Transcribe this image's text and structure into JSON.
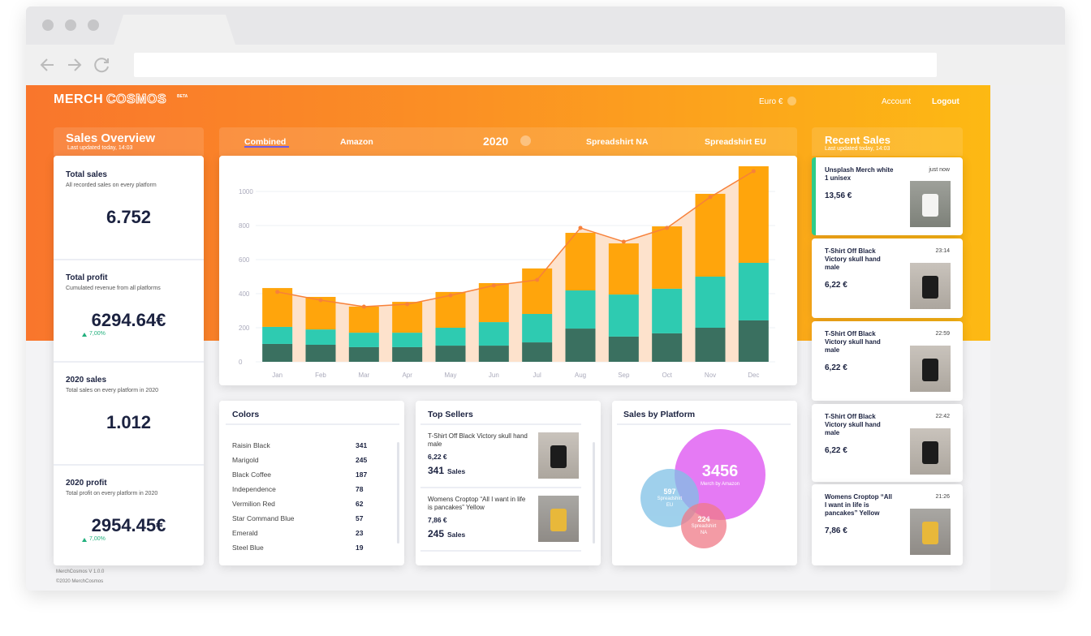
{
  "header": {
    "logo_left": "MERCH",
    "logo_right": "COSMOS",
    "badge": "BETA",
    "currency": "Euro €",
    "account": "Account",
    "logout": "Logout"
  },
  "overview": {
    "title": "Sales Overview",
    "updated": "Last updated today, 14:03",
    "cards": [
      {
        "title": "Total sales",
        "subtitle": "All recorded sales on every platform",
        "value": "6.752"
      },
      {
        "title": "Total profit",
        "subtitle": "Cumulated revenue from all platforms",
        "value": "6294.64€",
        "change": "7,00%"
      },
      {
        "title": "2020 sales",
        "subtitle": "Total sales on every platform in 2020",
        "value": "1.012"
      },
      {
        "title": "2020 profit",
        "subtitle": "Total profit on every platform in 2020",
        "value": "2954.45€",
        "change": "7,00%"
      }
    ]
  },
  "footer": {
    "version": "MerchCosmos V 1.0.0",
    "copyright": "©2020 MerchCosmos"
  },
  "tabs": [
    "Combined",
    "Amazon",
    "2020",
    "Spreadshirt NA",
    "Spreadshirt EU"
  ],
  "chart_data": {
    "type": "bar",
    "stacked": true,
    "categories": [
      "Jan",
      "Feb",
      "Mar",
      "Apr",
      "May",
      "Jun",
      "Jul",
      "Aug",
      "Sep",
      "Oct",
      "Nov",
      "Dec"
    ],
    "series": [
      {
        "type": "bar",
        "color": "#3a7060",
        "values": [
          105,
          100,
          86,
          86,
          95,
          95,
          114,
          195,
          148,
          167,
          200,
          243
        ]
      },
      {
        "type": "bar",
        "color": "#2ecbb1",
        "values": [
          100,
          90,
          85,
          85,
          105,
          138,
          167,
          224,
          247,
          262,
          300,
          338
        ]
      },
      {
        "type": "bar",
        "color": "#ffa50c",
        "values": [
          228,
          191,
          153,
          181,
          210,
          229,
          267,
          338,
          300,
          366,
          486,
          567
        ]
      },
      {
        "type": "line",
        "color": "#f7813a",
        "area_color": "#fde2cc",
        "values": [
          410,
          362,
          324,
          338,
          390,
          448,
          481,
          786,
          705,
          786,
          967,
          1119
        ]
      }
    ],
    "ylim": [
      0,
      1200
    ],
    "yticks": [
      0,
      200,
      400,
      600,
      800,
      1000
    ],
    "grid": true
  },
  "colors": {
    "title": "Colors",
    "rows": [
      [
        "Raisin Black",
        341
      ],
      [
        "Marigold",
        245
      ],
      [
        "Black Coffee",
        187
      ],
      [
        "Independence",
        78
      ],
      [
        "Vermilion Red",
        62
      ],
      [
        "Star Command Blue",
        57
      ],
      [
        "Emerald",
        23
      ],
      [
        "Steel Blue",
        19
      ]
    ]
  },
  "top_sellers": {
    "title": "Top Sellers",
    "items": [
      {
        "name": "T-Shirt Off Black Victory skull hand male",
        "price": "6,22 €",
        "count": "341",
        "unit": "Sales"
      },
      {
        "name": "Womens Croptop “All I want in life is pancakes” Yellow",
        "price": "7,86 €",
        "count": "245",
        "unit": "Sales"
      }
    ]
  },
  "platforms": {
    "title": "Sales by Platform",
    "items": [
      {
        "value": 3456,
        "label": "Merch by Amazon",
        "color": "#e36cf3"
      },
      {
        "value": 597,
        "label": "Spreadshirt EU",
        "color": "#7fc1e6"
      },
      {
        "value": 224,
        "label": "Spreadshirt NA",
        "color": "#f07a88"
      }
    ]
  },
  "recent": {
    "title": "Recent Sales",
    "updated": "Last updated today, 14:03",
    "items": [
      {
        "name": "Unsplash Merch white 1 unisex",
        "time": "just now",
        "price": "13,56 €"
      },
      {
        "name": "T-Shirt Off Black Victory skull hand male",
        "time": "23:14",
        "price": "6,22 €"
      },
      {
        "name": "T-Shirt Off Black Victory skull hand male",
        "time": "22:59",
        "price": "6,22 €"
      },
      {
        "name": "T-Shirt Off Black Victory skull hand male",
        "time": "22:42",
        "price": "6,22 €"
      },
      {
        "name": "Womens Croptop “All I want in life is pancakes” Yellow",
        "time": "21:26",
        "price": "7,86 €"
      }
    ]
  }
}
